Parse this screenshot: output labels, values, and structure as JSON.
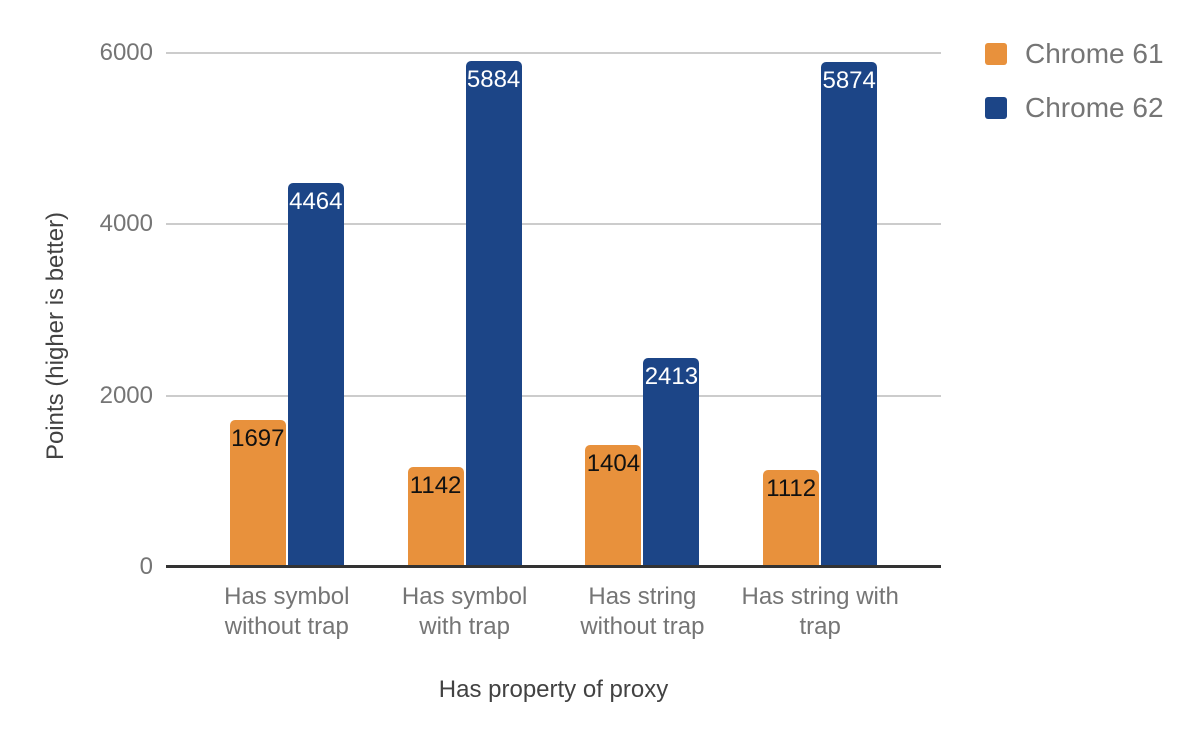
{
  "chart_data": {
    "type": "bar",
    "title": "",
    "xlabel": "Has property of proxy",
    "ylabel": "Points (higher is better)",
    "categories": [
      "Has symbol without trap",
      "Has symbol with trap",
      "Has string without trap",
      "Has string with trap"
    ],
    "series": [
      {
        "name": "Chrome 61",
        "color": "#E8913C",
        "label_color": "#111111",
        "values": [
          1697,
          1142,
          1404,
          1112
        ]
      },
      {
        "name": "Chrome 62",
        "color": "#1C4587",
        "label_color": "#FFFFFF",
        "values": [
          4464,
          5884,
          2413,
          5874
        ]
      }
    ],
    "ylim": [
      0,
      6000
    ],
    "yticks": [
      0,
      2000,
      4000,
      6000
    ],
    "grid": true,
    "legend_position": "top-right",
    "data_labels": true,
    "background_color": "#FFFFFF",
    "gridline_color": "#CCCCCC",
    "axis_line_color": "#333333",
    "tick_label_color": "#757575",
    "axis_title_color": "#424242",
    "legend_text_color": "#757575"
  }
}
